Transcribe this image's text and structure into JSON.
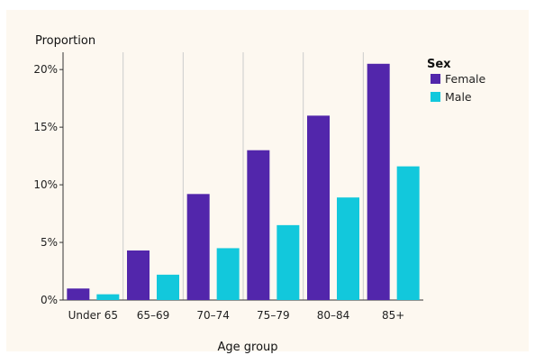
{
  "chart_data": {
    "type": "bar",
    "ylabel": "Proportion",
    "xlabel": "Age group",
    "categories": [
      "Under 65",
      "65–69",
      "70–74",
      "75–79",
      "80–84",
      "85+"
    ],
    "series": [
      {
        "name": "Female",
        "color": "#5226ab",
        "values": [
          1.0,
          4.3,
          9.2,
          13.0,
          16.0,
          20.5
        ]
      },
      {
        "name": "Male",
        "color": "#12c8dc",
        "values": [
          0.5,
          2.2,
          4.5,
          6.5,
          8.9,
          11.6
        ]
      }
    ],
    "ylim": [
      0,
      21.5
    ],
    "yticks": [
      0,
      5,
      10,
      15,
      20
    ],
    "ytick_labels": [
      "0%",
      "5%",
      "10%",
      "15%",
      "20%"
    ],
    "legend": {
      "title": "Sex",
      "position": "right"
    },
    "grid": "vertical category separators",
    "colors": {
      "background": "#fdf8f0",
      "axis": "#333333",
      "separator": "#cccccc"
    }
  }
}
